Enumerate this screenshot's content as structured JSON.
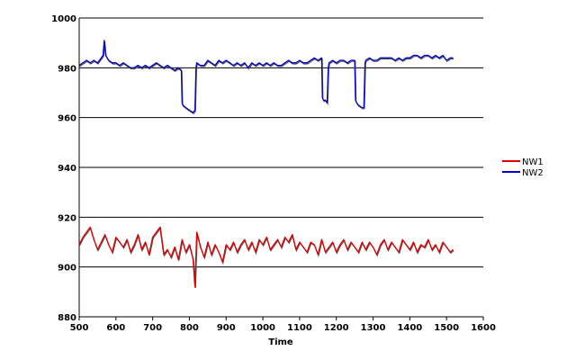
{
  "chart_data": {
    "type": "line",
    "title": "",
    "xlabel": "Time",
    "ylabel": "",
    "xlim": [
      500,
      1600
    ],
    "ylim": [
      880,
      1000
    ],
    "x_ticks": [
      500,
      600,
      700,
      800,
      900,
      1000,
      1100,
      1200,
      1300,
      1400,
      1500,
      1600
    ],
    "y_ticks": [
      880,
      900,
      920,
      940,
      960,
      980,
      1000
    ],
    "grid": "horizontal",
    "legend_position": "right",
    "series": [
      {
        "name": "NW1",
        "color": "#e00000",
        "x": [
          500,
          510,
          520,
          530,
          540,
          550,
          560,
          570,
          580,
          590,
          600,
          610,
          620,
          630,
          640,
          650,
          660,
          670,
          680,
          690,
          700,
          710,
          720,
          730,
          740,
          750,
          760,
          770,
          780,
          790,
          800,
          810,
          815,
          820,
          830,
          840,
          850,
          860,
          870,
          880,
          890,
          900,
          910,
          920,
          930,
          940,
          950,
          960,
          970,
          980,
          990,
          1000,
          1010,
          1020,
          1030,
          1040,
          1050,
          1060,
          1070,
          1080,
          1090,
          1100,
          1110,
          1120,
          1130,
          1140,
          1150,
          1160,
          1170,
          1180,
          1190,
          1200,
          1210,
          1220,
          1230,
          1240,
          1250,
          1260,
          1270,
          1280,
          1290,
          1300,
          1310,
          1320,
          1330,
          1340,
          1350,
          1360,
          1370,
          1380,
          1390,
          1400,
          1410,
          1420,
          1430,
          1440,
          1450,
          1460,
          1470,
          1480,
          1490,
          1500,
          1510,
          1518
        ],
        "values": [
          909,
          912,
          914,
          916,
          911,
          907,
          910,
          913,
          909,
          906,
          912,
          910,
          908,
          911,
          906,
          909,
          913,
          907,
          910,
          905,
          912,
          914,
          916,
          905,
          907,
          904,
          908,
          903,
          911,
          906,
          909,
          903,
          892,
          914,
          908,
          904,
          910,
          905,
          909,
          906,
          902,
          909,
          907,
          910,
          906,
          909,
          911,
          907,
          910,
          906,
          911,
          909,
          912,
          907,
          909,
          911,
          908,
          912,
          910,
          913,
          907,
          910,
          908,
          906,
          910,
          909,
          905,
          911,
          906,
          908,
          910,
          906,
          909,
          911,
          907,
          910,
          908,
          906,
          910,
          907,
          910,
          908,
          905,
          909,
          911,
          907,
          910,
          908,
          906,
          911,
          909,
          907,
          910,
          906,
          909,
          908,
          911,
          907,
          909,
          906,
          910,
          908,
          906,
          907
        ]
      },
      {
        "name": "NW2",
        "color": "#0000cc",
        "x": [
          500,
          510,
          520,
          530,
          540,
          550,
          560,
          565,
          568,
          572,
          580,
          590,
          600,
          610,
          620,
          630,
          640,
          650,
          660,
          670,
          680,
          690,
          700,
          710,
          720,
          730,
          740,
          750,
          760,
          770,
          778,
          780,
          782,
          790,
          800,
          810,
          815,
          818,
          820,
          830,
          840,
          850,
          860,
          870,
          880,
          890,
          900,
          910,
          920,
          930,
          940,
          950,
          960,
          970,
          980,
          990,
          1000,
          1010,
          1020,
          1030,
          1040,
          1050,
          1060,
          1070,
          1080,
          1090,
          1100,
          1110,
          1120,
          1130,
          1140,
          1150,
          1160,
          1162,
          1165,
          1170,
          1175,
          1178,
          1180,
          1190,
          1200,
          1210,
          1220,
          1230,
          1240,
          1250,
          1252,
          1255,
          1260,
          1270,
          1275,
          1278,
          1280,
          1290,
          1300,
          1310,
          1320,
          1330,
          1340,
          1350,
          1360,
          1370,
          1380,
          1390,
          1400,
          1410,
          1420,
          1430,
          1440,
          1450,
          1460,
          1470,
          1480,
          1490,
          1500,
          1510,
          1518
        ],
        "values": [
          981,
          982,
          983,
          982,
          983,
          982,
          984,
          985,
          991,
          985,
          983,
          982,
          982,
          981,
          982,
          981,
          980,
          980,
          981,
          980,
          981,
          980,
          981,
          982,
          981,
          980,
          981,
          980,
          979,
          980,
          979,
          966,
          965,
          964,
          963,
          962,
          963,
          980,
          982,
          981,
          981,
          983,
          982,
          981,
          983,
          982,
          983,
          982,
          981,
          982,
          981,
          982,
          980,
          982,
          981,
          982,
          981,
          982,
          981,
          982,
          981,
          981,
          982,
          983,
          982,
          982,
          983,
          982,
          982,
          983,
          984,
          983,
          984,
          968,
          967,
          967,
          966,
          980,
          982,
          983,
          982,
          983,
          983,
          982,
          983,
          983,
          967,
          966,
          965,
          964,
          964,
          982,
          983,
          984,
          983,
          983,
          984,
          984,
          984,
          984,
          983,
          984,
          983,
          984,
          984,
          985,
          985,
          984,
          985,
          985,
          984,
          985,
          984,
          985,
          983,
          984,
          984
        ]
      }
    ]
  }
}
